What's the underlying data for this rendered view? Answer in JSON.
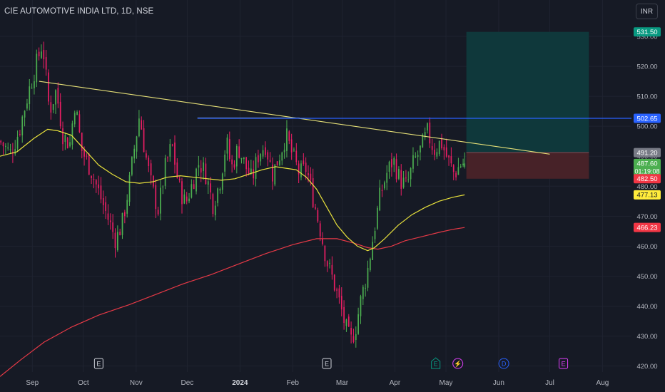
{
  "header": {
    "title": "CIE AUTOMOTIVE INDIA LTD, 1D, NSE",
    "currency": "INR"
  },
  "chart_data": {
    "type": "candlestick",
    "symbol": "CIE AUTOMOTIVE INDIA LTD",
    "interval": "1D",
    "exchange": "NSE",
    "ylim": [
      418,
      535
    ],
    "y_ticks": [
      420,
      430,
      440,
      450,
      460,
      470,
      480,
      490,
      500,
      510,
      520,
      530
    ],
    "y_tick_labels": [
      "420.00",
      "430.00",
      "440.00",
      "450.00",
      "460.00",
      "470.00",
      "480.00",
      "490.00",
      "500.00",
      "510.00",
      "520.00",
      "530.00"
    ],
    "x_labels": [
      {
        "label": "Sep",
        "day": 3
      },
      {
        "label": "Oct",
        "day": 33
      },
      {
        "label": "Nov",
        "day": 64
      },
      {
        "label": "Dec",
        "day": 94
      },
      {
        "label": "2024",
        "day": 125
      },
      {
        "label": "Feb",
        "day": 156
      },
      {
        "label": "Mar",
        "day": 185
      },
      {
        "label": "Apr",
        "day": 216
      },
      {
        "label": "May",
        "day": 246
      },
      {
        "label": "Jun",
        "day": 277
      },
      {
        "label": "Jul",
        "day": 307
      },
      {
        "label": "Aug",
        "day": 338
      }
    ],
    "x_range_days": [
      -16,
      355
    ],
    "price_path": [
      [
        -16,
        495
      ],
      [
        -10,
        491
      ],
      [
        -5,
        498
      ],
      [
        1,
        512
      ],
      [
        5,
        520
      ],
      [
        9,
        528
      ],
      [
        13,
        505
      ],
      [
        17,
        512
      ],
      [
        21,
        497
      ],
      [
        25,
        494
      ],
      [
        28,
        508
      ],
      [
        32,
        492
      ],
      [
        37,
        486
      ],
      [
        42,
        478
      ],
      [
        47,
        470
      ],
      [
        52,
        462
      ],
      [
        56,
        468
      ],
      [
        60,
        481
      ],
      [
        63,
        493
      ],
      [
        66,
        504
      ],
      [
        69,
        492
      ],
      [
        73,
        480
      ],
      [
        77,
        472
      ],
      [
        81,
        486
      ],
      [
        85,
        494
      ],
      [
        89,
        480
      ],
      [
        93,
        474
      ],
      [
        97,
        481
      ],
      [
        101,
        488
      ],
      [
        105,
        484
      ],
      [
        109,
        474
      ],
      [
        113,
        481
      ],
      [
        117,
        495
      ],
      [
        120,
        486
      ],
      [
        124,
        493
      ],
      [
        128,
        487
      ],
      [
        132,
        482
      ],
      [
        136,
        491
      ],
      [
        140,
        494
      ],
      [
        144,
        484
      ],
      [
        148,
        490
      ],
      [
        152,
        497
      ],
      [
        156,
        490
      ],
      [
        160,
        484
      ],
      [
        164,
        486
      ],
      [
        168,
        476
      ],
      [
        172,
        466
      ],
      [
        176,
        455
      ],
      [
        180,
        448
      ],
      [
        184,
        440
      ],
      [
        187,
        433
      ],
      [
        190,
        428
      ],
      [
        193,
        433
      ],
      [
        196,
        442
      ],
      [
        200,
        452
      ],
      [
        204,
        466
      ],
      [
        207,
        476
      ],
      [
        211,
        484
      ],
      [
        215,
        489
      ],
      [
        219,
        482
      ],
      [
        223,
        480
      ],
      [
        227,
        488
      ],
      [
        231,
        492
      ],
      [
        235,
        498
      ],
      [
        239,
        492
      ],
      [
        243,
        495
      ],
      [
        247,
        489
      ],
      [
        251,
        484
      ],
      [
        254,
        487
      ],
      [
        257,
        488
      ]
    ],
    "last_bar": {
      "open": 486.5,
      "high": 491.3,
      "low": 485.9,
      "close": 487.6
    },
    "ma_yellow": [
      [
        -16,
        490.0
      ],
      [
        -6,
        491.5
      ],
      [
        4,
        496.0
      ],
      [
        12,
        499.0
      ],
      [
        18,
        498.5
      ],
      [
        26,
        497.0
      ],
      [
        34,
        492.0
      ],
      [
        42,
        487.0
      ],
      [
        50,
        484.0
      ],
      [
        58,
        481.5
      ],
      [
        66,
        481.0
      ],
      [
        74,
        481.5
      ],
      [
        82,
        483.0
      ],
      [
        90,
        483.5
      ],
      [
        98,
        483.0
      ],
      [
        106,
        482.5
      ],
      [
        114,
        482.0
      ],
      [
        122,
        482.5
      ],
      [
        130,
        484.0
      ],
      [
        138,
        485.5
      ],
      [
        146,
        486.5
      ],
      [
        152,
        486.0
      ],
      [
        158,
        485.5
      ],
      [
        164,
        483.0
      ],
      [
        170,
        479.0
      ],
      [
        176,
        473.0
      ],
      [
        182,
        467.0
      ],
      [
        188,
        463.0
      ],
      [
        194,
        460.0
      ],
      [
        200,
        458.5
      ],
      [
        204,
        459.5
      ],
      [
        210,
        462.5
      ],
      [
        218,
        467.0
      ],
      [
        226,
        470.5
      ],
      [
        234,
        473.0
      ],
      [
        242,
        475.0
      ],
      [
        250,
        476.3
      ],
      [
        257,
        477.13
      ]
    ],
    "ma_red": [
      [
        -16,
        416.5
      ],
      [
        -4,
        422.0
      ],
      [
        10,
        428.0
      ],
      [
        26,
        433.0
      ],
      [
        42,
        437.0
      ],
      [
        60,
        440.5
      ],
      [
        76,
        444.0
      ],
      [
        92,
        447.5
      ],
      [
        108,
        450.5
      ],
      [
        124,
        454.0
      ],
      [
        140,
        457.5
      ],
      [
        156,
        460.5
      ],
      [
        170,
        462.5
      ],
      [
        182,
        462.5
      ],
      [
        192,
        461.0
      ],
      [
        200,
        459.5
      ],
      [
        206,
        459.0
      ],
      [
        214,
        460.0
      ],
      [
        222,
        461.8
      ],
      [
        232,
        463.2
      ],
      [
        242,
        464.6
      ],
      [
        250,
        465.6
      ],
      [
        257,
        466.23
      ]
    ],
    "trendline": {
      "from": [
        7,
        515.0
      ],
      "to": [
        307,
        490.7
      ]
    },
    "resistance_line": {
      "from": [
        100,
        502.65
      ],
      "to": [
        355,
        502.65
      ]
    },
    "resistance_marker": {
      "from": [
        100,
        502.8
      ],
      "to": [
        160,
        502.8
      ]
    },
    "position": {
      "x_from": 258,
      "x_to": 330,
      "target": 531.5,
      "entry": 491.2,
      "stop": 482.5
    },
    "price_labels": [
      {
        "label": "531.50",
        "value": 531.5,
        "bg": "#089981",
        "fg": "#ffffff"
      },
      {
        "label": "502.65",
        "value": 502.65,
        "bg": "#2962ff",
        "fg": "#ffffff"
      },
      {
        "label": "491.20",
        "value": 491.2,
        "bg": "#787b86",
        "fg": "#ffffff"
      },
      {
        "label": "487.60",
        "value": 487.6,
        "bg": "#4caf50",
        "fg": "#ffffff",
        "sub": "01:19:08"
      },
      {
        "label": "482.50",
        "value": 482.5,
        "bg": "#f23645",
        "fg": "#ffffff"
      },
      {
        "label": "477.13",
        "value": 477.13,
        "bg": "#ffeb3b",
        "fg": "#131722"
      },
      {
        "label": "466.23",
        "value": 466.23,
        "bg": "#f23645",
        "fg": "#ffffff"
      }
    ],
    "events": [
      {
        "day": 42,
        "glyph": "E",
        "color": "#d1d4dc",
        "shape": "square"
      },
      {
        "day": 176,
        "glyph": "E",
        "color": "#d1d4dc",
        "shape": "square"
      },
      {
        "day": 240,
        "glyph": "E",
        "color": "#089981",
        "shape": "house"
      },
      {
        "day": 253,
        "glyph": "⚡",
        "color": "#e040fb",
        "shape": "circle"
      },
      {
        "day": 280,
        "glyph": "D",
        "color": "#2962ff",
        "shape": "circle"
      },
      {
        "day": 315,
        "glyph": "E",
        "color": "#e040fb",
        "shape": "square"
      }
    ],
    "colors": {
      "background": "#161a25",
      "grid": "#1f2330",
      "up": "#4caf50",
      "down": "#e91e63",
      "ma_yellow": "#e8e13c",
      "ma_red": "#e53946",
      "trendline": "#e6e078",
      "resistance": "#2962ff",
      "target_zone": "#0f3a3c",
      "stop_zone": "#4a2328",
      "axis_text": "#b2b5be"
    },
    "grid": true
  }
}
